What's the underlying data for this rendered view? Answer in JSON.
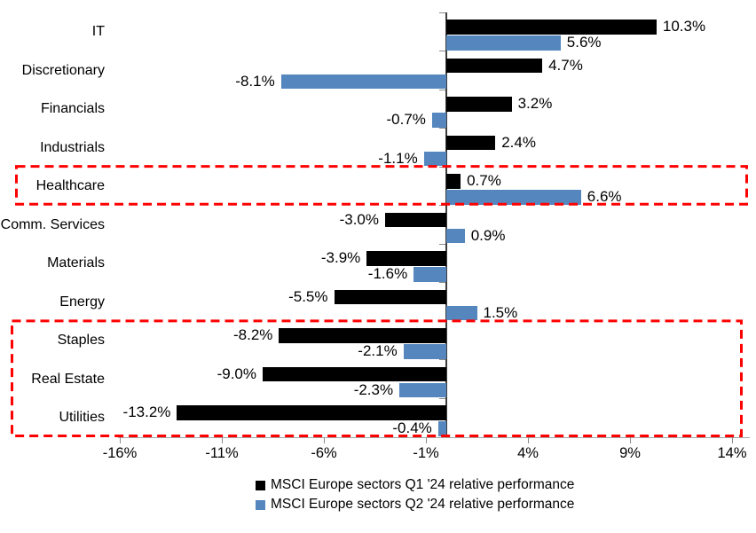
{
  "chart_data": {
    "type": "bar",
    "orientation": "horizontal",
    "title": "",
    "categories": [
      "IT",
      "Discretionary",
      "Financials",
      "Industrials",
      "Healthcare",
      "Comm. Services",
      "Materials",
      "Energy",
      "Staples",
      "Real Estate",
      "Utilities"
    ],
    "series": [
      {
        "name": "MSCI Europe sectors Q1 '24 relative performance",
        "color": "#000000",
        "values": [
          10.3,
          4.7,
          3.2,
          2.4,
          0.7,
          -3.0,
          -3.9,
          -5.5,
          -8.2,
          -9.0,
          -13.2
        ],
        "data_labels": [
          "10.3%",
          "4.7%",
          "3.2%",
          "2.4%",
          "0.7%",
          "-3.0%",
          "-3.9%",
          "-5.5%",
          "-8.2%",
          "-9.0%",
          "-13.2%"
        ]
      },
      {
        "name": "MSCI Europe sectors Q2 '24 relative performance",
        "color": "#5587BE",
        "values": [
          5.6,
          -8.1,
          -0.7,
          -1.1,
          6.6,
          0.9,
          -1.6,
          1.5,
          -2.1,
          -2.3,
          -0.4
        ],
        "data_labels": [
          "5.6%",
          "-8.1%",
          "-0.7%",
          "-1.1%",
          "6.6%",
          "0.9%",
          "-1.6%",
          "1.5%",
          "-2.1%",
          "-2.3%",
          "-0.4%"
        ]
      }
    ],
    "x_axis": {
      "tick_labels": [
        "-16%",
        "-11%",
        "-6%",
        "-1%",
        "4%",
        "9%",
        "14%"
      ],
      "tick_values": [
        -16,
        -11,
        -6,
        -1,
        4,
        9,
        14
      ],
      "range": [
        -16,
        14
      ]
    },
    "grid": false,
    "legend_position": "bottom-center",
    "highlight_color": "#FF0000",
    "highlights": [
      {
        "style": "red-dashed-box",
        "categories": [
          "Healthcare"
        ]
      },
      {
        "style": "red-dashed-box",
        "categories": [
          "Staples",
          "Real Estate",
          "Utilities"
        ]
      }
    ]
  }
}
